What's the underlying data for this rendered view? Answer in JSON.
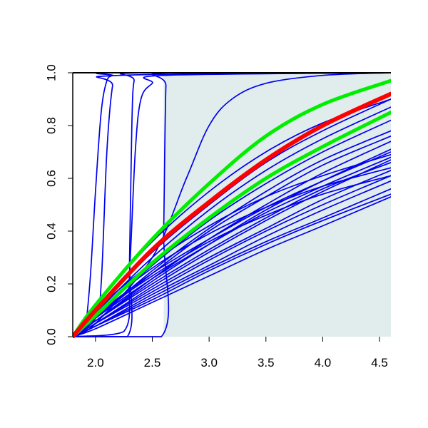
{
  "chart_data": {
    "type": "line",
    "title": "",
    "xlabel": "",
    "ylabel": "",
    "xlim": [
      1.8,
      4.6
    ],
    "ylim": [
      0.0,
      1.0
    ],
    "x_ticks": [
      2.0,
      2.5,
      3.0,
      3.5,
      4.0,
      4.5
    ],
    "x_tick_labels": [
      "2.0",
      "2.5",
      "3.0",
      "3.5",
      "4.0",
      "4.5"
    ],
    "y_ticks": [
      0.0,
      0.2,
      0.4,
      0.6,
      0.8,
      1.0
    ],
    "y_tick_labels": [
      "0.0",
      "0.2",
      "0.4",
      "0.6",
      "0.8",
      "1.0"
    ],
    "grid": false,
    "legend": "none",
    "shaded_region": {
      "x_from": 2.6,
      "x_to": 4.6,
      "color": "#e1eded"
    },
    "colors": {
      "bundle": "#0000ee",
      "central": "#ff0000",
      "band": "#00ee00",
      "shade": "#e1eded"
    },
    "series": [
      {
        "role": "central",
        "x": [
          1.8,
          2.0,
          2.5,
          3.0,
          3.5,
          4.0,
          4.6
        ],
        "values": [
          0.0,
          0.1,
          0.33,
          0.51,
          0.67,
          0.8,
          0.92
        ]
      },
      {
        "role": "band-upper",
        "x": [
          1.8,
          2.0,
          2.5,
          3.0,
          3.5,
          4.0,
          4.6
        ],
        "values": [
          0.0,
          0.12,
          0.37,
          0.58,
          0.76,
          0.88,
          0.97
        ]
      },
      {
        "role": "band-lower",
        "x": [
          1.8,
          2.0,
          2.5,
          3.0,
          3.5,
          4.0,
          4.6
        ],
        "values": [
          0.0,
          0.08,
          0.28,
          0.45,
          0.6,
          0.72,
          0.85
        ]
      },
      {
        "role": "bundle",
        "x": [
          1.8,
          1.9,
          1.95,
          2.0,
          2.05,
          2.1,
          2.15,
          2.2,
          4.6
        ],
        "values": [
          0.0,
          0.03,
          0.2,
          0.55,
          0.85,
          0.97,
          0.99,
          1.0,
          1.0
        ]
      },
      {
        "role": "bundle",
        "x": [
          1.8,
          2.0,
          2.05,
          2.1,
          2.15,
          2.2,
          4.6
        ],
        "values": [
          0.0,
          0.07,
          0.2,
          0.7,
          0.95,
          0.99,
          1.0
        ]
      },
      {
        "role": "bundle",
        "x": [
          1.8,
          2.28,
          2.3,
          2.32,
          2.34,
          2.4,
          4.6
        ],
        "values": [
          0.0,
          0.0,
          0.3,
          0.8,
          0.97,
          1.0,
          1.0
        ]
      },
      {
        "role": "bundle",
        "x": [
          1.8,
          2.25,
          2.3,
          2.35,
          2.4,
          2.5,
          2.6,
          4.6
        ],
        "values": [
          0.0,
          0.02,
          0.25,
          0.7,
          0.9,
          0.96,
          0.99,
          1.0
        ]
      },
      {
        "role": "bundle",
        "x": [
          1.8,
          2.58,
          2.6,
          2.62,
          2.65,
          4.6
        ],
        "values": [
          0.0,
          0.0,
          0.4,
          0.95,
          1.0,
          1.0
        ]
      },
      {
        "role": "bundle",
        "x": [
          1.8,
          2.0,
          2.5,
          2.8,
          3.0,
          3.2,
          3.5,
          4.0,
          4.6
        ],
        "values": [
          0.0,
          0.05,
          0.3,
          0.6,
          0.8,
          0.9,
          0.96,
          0.99,
          1.0
        ]
      },
      {
        "role": "bundle",
        "x": [
          1.8,
          2.0,
          2.5,
          3.0,
          3.5,
          4.0,
          4.6
        ],
        "values": [
          0.0,
          0.1,
          0.32,
          0.5,
          0.66,
          0.78,
          0.9
        ]
      },
      {
        "role": "bundle",
        "x": [
          1.8,
          2.0,
          2.5,
          3.0,
          3.5,
          4.0,
          4.6
        ],
        "values": [
          0.0,
          0.09,
          0.3,
          0.48,
          0.63,
          0.75,
          0.87
        ]
      },
      {
        "role": "bundle",
        "x": [
          1.8,
          2.0,
          2.5,
          3.0,
          3.5,
          4.0,
          4.6
        ],
        "values": [
          0.0,
          0.08,
          0.27,
          0.44,
          0.58,
          0.7,
          0.82
        ]
      },
      {
        "role": "bundle",
        "x": [
          1.8,
          2.0,
          2.5,
          3.0,
          3.5,
          4.0,
          4.6
        ],
        "values": [
          0.0,
          0.07,
          0.25,
          0.41,
          0.55,
          0.67,
          0.78
        ]
      },
      {
        "role": "bundle",
        "x": [
          1.8,
          2.0,
          2.5,
          3.0,
          3.5,
          4.0,
          4.6
        ],
        "values": [
          0.0,
          0.07,
          0.24,
          0.4,
          0.53,
          0.65,
          0.76
        ]
      },
      {
        "role": "bundle",
        "x": [
          1.8,
          2.0,
          2.5,
          3.0,
          3.5,
          4.0,
          4.6
        ],
        "values": [
          0.0,
          0.06,
          0.22,
          0.37,
          0.5,
          0.62,
          0.74
        ]
      },
      {
        "role": "bundle",
        "x": [
          1.8,
          2.0,
          2.5,
          3.0,
          3.5,
          4.0,
          4.6
        ],
        "values": [
          0.0,
          0.06,
          0.21,
          0.35,
          0.48,
          0.59,
          0.71
        ]
      },
      {
        "role": "bundle",
        "x": [
          1.8,
          2.0,
          2.5,
          3.0,
          3.5,
          4.0,
          4.6
        ],
        "values": [
          0.0,
          0.05,
          0.19,
          0.32,
          0.44,
          0.55,
          0.67
        ]
      },
      {
        "role": "bundle",
        "x": [
          1.8,
          2.0,
          2.5,
          3.0,
          3.5,
          4.0,
          4.6
        ],
        "values": [
          0.0,
          0.05,
          0.18,
          0.3,
          0.41,
          0.52,
          0.63
        ]
      },
      {
        "role": "bundle",
        "x": [
          1.8,
          2.0,
          2.5,
          3.0,
          3.5,
          4.0,
          4.6
        ],
        "values": [
          0.0,
          0.04,
          0.16,
          0.27,
          0.38,
          0.48,
          0.59
        ]
      },
      {
        "role": "bundle",
        "x": [
          1.8,
          2.0,
          2.5,
          3.0,
          3.5,
          4.0,
          4.6
        ],
        "values": [
          0.0,
          0.04,
          0.15,
          0.26,
          0.36,
          0.45,
          0.56
        ]
      },
      {
        "role": "bundle",
        "x": [
          1.8,
          2.0,
          2.5,
          3.0,
          3.5,
          4.0,
          4.6
        ],
        "values": [
          0.0,
          0.03,
          0.13,
          0.23,
          0.33,
          0.42,
          0.53
        ]
      },
      {
        "role": "bundle",
        "x": [
          1.8,
          2.0,
          2.5,
          3.0,
          3.5,
          4.0,
          4.6
        ],
        "values": [
          0.0,
          0.1,
          0.28,
          0.42,
          0.53,
          0.61,
          0.69
        ]
      },
      {
        "role": "bundle",
        "x": [
          1.8,
          2.0,
          2.5,
          3.0,
          3.5,
          4.0,
          4.6
        ],
        "values": [
          0.0,
          0.09,
          0.26,
          0.39,
          0.49,
          0.57,
          0.64
        ]
      },
      {
        "role": "bundle",
        "x": [
          1.8,
          2.0,
          2.5,
          3.0,
          3.5,
          4.0,
          4.6
        ],
        "values": [
          0.0,
          0.08,
          0.23,
          0.36,
          0.46,
          0.54,
          0.61
        ]
      },
      {
        "role": "bundle",
        "x": [
          1.8,
          2.0,
          2.5,
          3.0,
          3.5,
          4.0,
          4.6
        ],
        "values": [
          0.0,
          0.08,
          0.24,
          0.37,
          0.49,
          0.59,
          0.7
        ]
      },
      {
        "role": "bundle",
        "x": [
          1.8,
          2.0,
          2.5,
          3.0,
          3.5,
          4.0,
          4.6
        ],
        "values": [
          0.0,
          0.07,
          0.22,
          0.35,
          0.47,
          0.57,
          0.68
        ]
      },
      {
        "role": "bundle",
        "x": [
          1.8,
          2.0,
          2.5,
          3.0,
          3.5,
          4.0,
          4.6
        ],
        "values": [
          0.0,
          0.06,
          0.2,
          0.33,
          0.45,
          0.56,
          0.66
        ]
      },
      {
        "role": "bundle",
        "x": [
          1.8,
          2.0,
          2.5,
          3.0,
          3.5,
          4.0,
          4.6
        ],
        "values": [
          0.0,
          0.05,
          0.17,
          0.29,
          0.4,
          0.5,
          0.61
        ]
      },
      {
        "role": "bundle",
        "x": [
          1.8,
          2.0,
          2.5,
          3.0,
          3.5,
          4.0,
          4.6
        ],
        "values": [
          0.0,
          0.04,
          0.14,
          0.25,
          0.35,
          0.44,
          0.54
        ]
      },
      {
        "role": "bundle",
        "x": [
          1.8,
          2.0,
          2.5,
          3.0,
          3.5,
          4.0,
          4.6
        ],
        "values": [
          0.0,
          0.12,
          0.36,
          0.55,
          0.7,
          0.81,
          0.9
        ]
      }
    ]
  }
}
